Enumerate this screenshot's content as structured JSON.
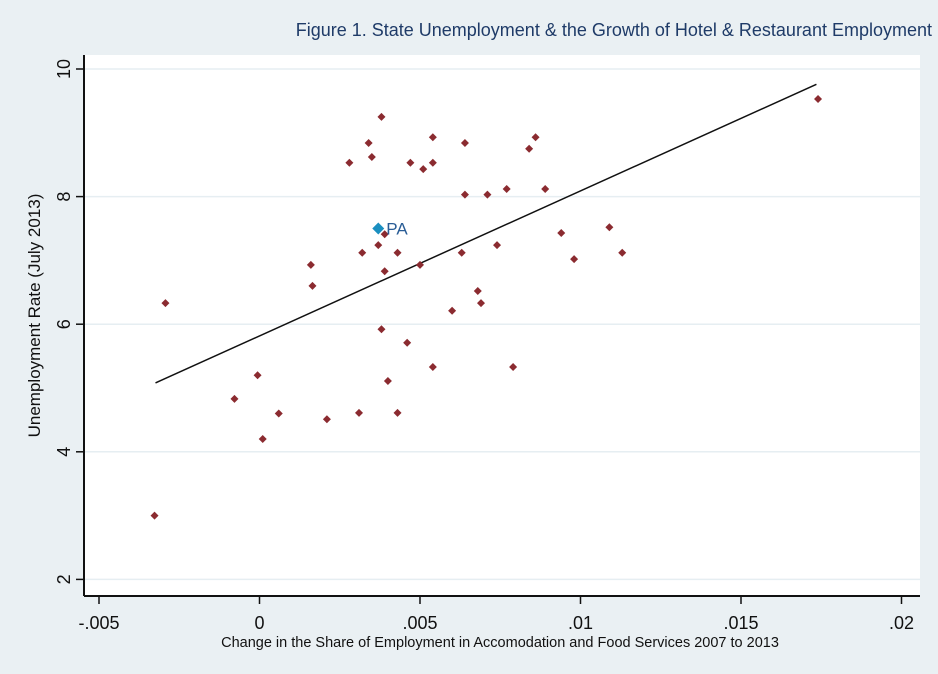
{
  "chart_data": {
    "type": "scatter",
    "title": "Figure 1. State Unemployment & the Growth of Hotel & Restaurant Employment",
    "xlabel": "Change in the Share of Employment in Accomodation and Food Services 2007 to 2013",
    "ylabel": "Unemployment Rate (July 2013)",
    "xlim": [
      -0.005,
      0.02
    ],
    "ylim": [
      2,
      10
    ],
    "xticks": [
      -0.005,
      0,
      0.005,
      0.01,
      0.015,
      0.02
    ],
    "xtick_labels": [
      "-.005",
      "0",
      ".005",
      ".01",
      ".015",
      ".02"
    ],
    "yticks": [
      2,
      4,
      6,
      8,
      10
    ],
    "ytick_labels": [
      "2",
      "4",
      "6",
      "8",
      "10"
    ],
    "grid": "horizontal",
    "colors": {
      "points": "#8b2b30",
      "highlight": "#1a8fc0",
      "line": "#111111",
      "background": "#eaf0f3",
      "plot": "#ffffff"
    },
    "points": [
      [
        -0.00327,
        3.0
      ],
      [
        -0.00293,
        6.33
      ],
      [
        -0.00078,
        4.83
      ],
      [
        -6e-05,
        5.2
      ],
      [
        0.0001,
        4.2
      ],
      [
        0.0006,
        4.6
      ],
      [
        0.0016,
        6.93
      ],
      [
        0.00165,
        6.6
      ],
      [
        0.0021,
        4.51
      ],
      [
        0.0028,
        8.53
      ],
      [
        0.0031,
        4.61
      ],
      [
        0.0032,
        7.12
      ],
      [
        0.0034,
        8.84
      ],
      [
        0.0035,
        8.62
      ],
      [
        0.0037,
        7.24
      ],
      [
        0.0038,
        9.25
      ],
      [
        0.0038,
        5.92
      ],
      [
        0.0039,
        7.41
      ],
      [
        0.0039,
        6.83
      ],
      [
        0.004,
        5.11
      ],
      [
        0.0043,
        7.12
      ],
      [
        0.0043,
        4.61
      ],
      [
        0.0046,
        5.71
      ],
      [
        0.0047,
        8.53
      ],
      [
        0.005,
        6.93
      ],
      [
        0.0051,
        8.43
      ],
      [
        0.0054,
        8.93
      ],
      [
        0.0054,
        8.53
      ],
      [
        0.0054,
        5.33
      ],
      [
        0.006,
        6.21
      ],
      [
        0.0063,
        7.12
      ],
      [
        0.0064,
        8.84
      ],
      [
        0.0064,
        8.03
      ],
      [
        0.0068,
        6.52
      ],
      [
        0.0069,
        6.33
      ],
      [
        0.0071,
        8.03
      ],
      [
        0.0074,
        7.24
      ],
      [
        0.0077,
        8.12
      ],
      [
        0.0079,
        5.33
      ],
      [
        0.0084,
        8.75
      ],
      [
        0.0086,
        8.93
      ],
      [
        0.0089,
        8.12
      ],
      [
        0.0094,
        7.43
      ],
      [
        0.0098,
        7.02
      ],
      [
        0.0109,
        7.52
      ],
      [
        0.0113,
        7.12
      ],
      [
        0.0174,
        9.53
      ]
    ],
    "highlight": {
      "label": "PA",
      "x": 0.0037,
      "y": 7.5
    },
    "fit_line": {
      "x": [
        -0.00324,
        0.01735
      ],
      "y": [
        5.08,
        9.76
      ]
    }
  }
}
